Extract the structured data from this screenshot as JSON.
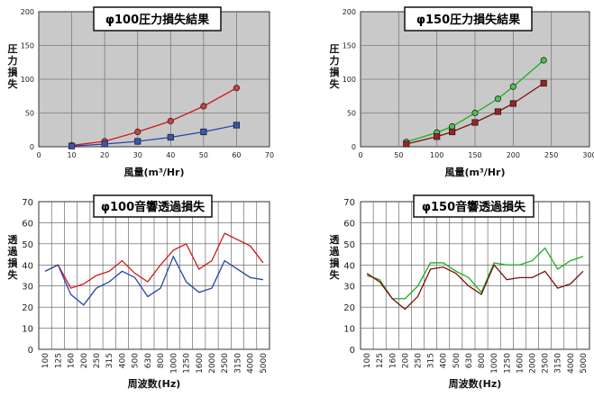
{
  "chart_data": [
    {
      "type": "line",
      "title": "φ100圧力損失結果",
      "xlabel": "風量(m³/Hr)",
      "ylabel": "圧力損失",
      "xlim": [
        0,
        70
      ],
      "ylim": [
        0,
        200
      ],
      "x_ticks": [
        0,
        10,
        20,
        30,
        40,
        50,
        60,
        70
      ],
      "y_ticks": [
        0,
        50,
        100,
        150,
        200
      ],
      "grid": true,
      "series": [
        {
          "color": "#d01818",
          "marker": "circle",
          "marker_fill": "#d04040",
          "x": [
            10,
            20,
            30,
            40,
            50,
            60
          ],
          "y": [
            2,
            8,
            22,
            38,
            60,
            87
          ]
        },
        {
          "color": "#2446a8",
          "marker": "square",
          "marker_fill": "#3a54b8",
          "x": [
            10,
            20,
            30,
            40,
            50,
            60
          ],
          "y": [
            1,
            4,
            8,
            14,
            22,
            32
          ]
        }
      ]
    },
    {
      "type": "line",
      "title": "φ150圧力損失結果",
      "xlabel": "風量(m³/Hr)",
      "ylabel": "圧力損失",
      "xlim": [
        0,
        300
      ],
      "ylim": [
        0,
        200
      ],
      "x_ticks": [
        0,
        50,
        100,
        150,
        200,
        250,
        300
      ],
      "y_ticks": [
        0,
        50,
        100,
        150,
        200
      ],
      "grid": true,
      "series": [
        {
          "color": "#18b018",
          "marker": "circle",
          "marker_fill": "#50c050",
          "x": [
            60,
            100,
            120,
            150,
            180,
            200,
            240
          ],
          "y": [
            7,
            21,
            30,
            50,
            71,
            89,
            128
          ]
        },
        {
          "color": "#7a1010",
          "marker": "square",
          "marker_fill": "#a02020",
          "x": [
            60,
            100,
            120,
            150,
            180,
            200,
            240
          ],
          "y": [
            4,
            15,
            22,
            36,
            52,
            64,
            94
          ]
        }
      ]
    },
    {
      "type": "line",
      "title": "φ100音響透過損失",
      "xlabel": "周波数(Hz)",
      "ylabel": "透過損失",
      "ylim": [
        0,
        70
      ],
      "y_ticks": [
        0,
        10,
        20,
        30,
        40,
        50,
        60,
        70
      ],
      "categories": [
        "100",
        "125",
        "160",
        "200",
        "250",
        "315",
        "400",
        "500",
        "630",
        "800",
        "1000",
        "1250",
        "1600",
        "2000",
        "2500",
        "3150",
        "4000",
        "5000"
      ],
      "grid": true,
      "series": [
        {
          "color": "#d01818",
          "values": [
            37,
            40,
            29,
            31,
            35,
            37,
            42,
            36,
            32,
            40,
            47,
            50,
            38,
            42,
            55,
            52,
            49,
            41
          ]
        },
        {
          "color": "#2446a8",
          "values": [
            37,
            40,
            26,
            21,
            29,
            32,
            37,
            34,
            25,
            29,
            44,
            32,
            27,
            29,
            42,
            38,
            34,
            33
          ]
        }
      ]
    },
    {
      "type": "line",
      "title": "φ150音響透過損失",
      "xlabel": "周波数(Hz)",
      "ylabel": "透過損失",
      "ylim": [
        0,
        70
      ],
      "y_ticks": [
        0,
        10,
        20,
        30,
        40,
        50,
        60,
        70
      ],
      "categories": [
        "100",
        "125",
        "160",
        "200",
        "250",
        "315",
        "400",
        "500",
        "630",
        "800",
        "1000",
        "1250",
        "1600",
        "2000",
        "2500",
        "3150",
        "4000",
        "5000"
      ],
      "grid": true,
      "series": [
        {
          "color": "#18b018",
          "values": [
            35,
            33,
            24,
            24,
            30,
            41,
            41,
            37,
            34,
            27,
            41,
            40,
            40,
            42,
            48,
            38,
            42,
            44
          ]
        },
        {
          "color": "#7a1010",
          "values": [
            36,
            32,
            24,
            19,
            25,
            38,
            39,
            36,
            30,
            26,
            40,
            33,
            34,
            34,
            37,
            29,
            31,
            37
          ]
        }
      ]
    }
  ]
}
